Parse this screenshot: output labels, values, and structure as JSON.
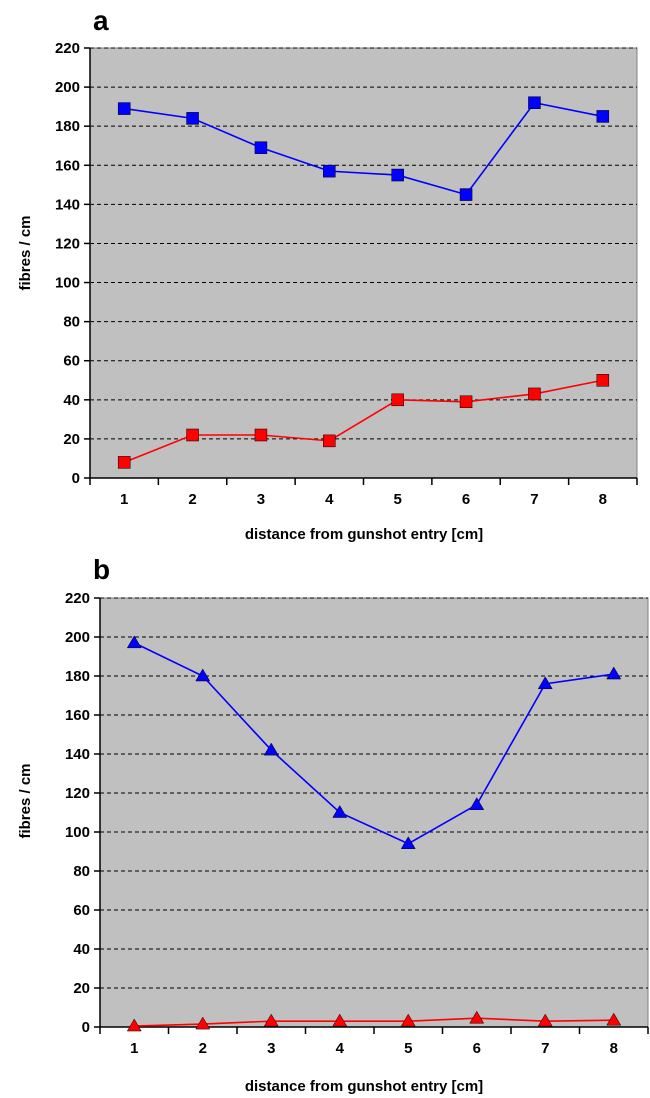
{
  "chart_data": [
    {
      "type": "line",
      "panel_label": "a",
      "xlabel": "distance from gunshot entry [cm]",
      "ylabel": "fibres / cm",
      "ylim": [
        0,
        220
      ],
      "yticks": [
        0,
        20,
        40,
        60,
        80,
        100,
        120,
        140,
        160,
        180,
        200,
        220
      ],
      "x": [
        1,
        2,
        3,
        4,
        5,
        6,
        7,
        8
      ],
      "grid": "horizontal dashed",
      "background": "#c0c0c0",
      "marker": "square",
      "series": [
        {
          "color": "#0000ff",
          "values": [
            189,
            184,
            169,
            157,
            155,
            145,
            192,
            185
          ]
        },
        {
          "color": "#ff0000",
          "values": [
            8,
            22,
            22,
            19,
            40,
            39,
            43,
            50
          ]
        }
      ]
    },
    {
      "type": "line",
      "panel_label": "b",
      "xlabel": "distance from gunshot entry [cm]",
      "ylabel": "fibres / cm",
      "ylim": [
        0,
        220
      ],
      "yticks": [
        0,
        20,
        40,
        60,
        80,
        100,
        120,
        140,
        160,
        180,
        200,
        220
      ],
      "x": [
        1,
        2,
        3,
        4,
        5,
        6,
        7,
        8
      ],
      "grid": "horizontal dashed",
      "background": "#c0c0c0",
      "marker": "triangle",
      "series": [
        {
          "color": "#0000ff",
          "values": [
            197,
            180,
            142,
            110,
            94,
            114,
            176,
            181
          ]
        },
        {
          "color": "#ff0000",
          "values": [
            0.5,
            1.5,
            3,
            3,
            3,
            4.5,
            3,
            3.5
          ]
        }
      ]
    }
  ]
}
